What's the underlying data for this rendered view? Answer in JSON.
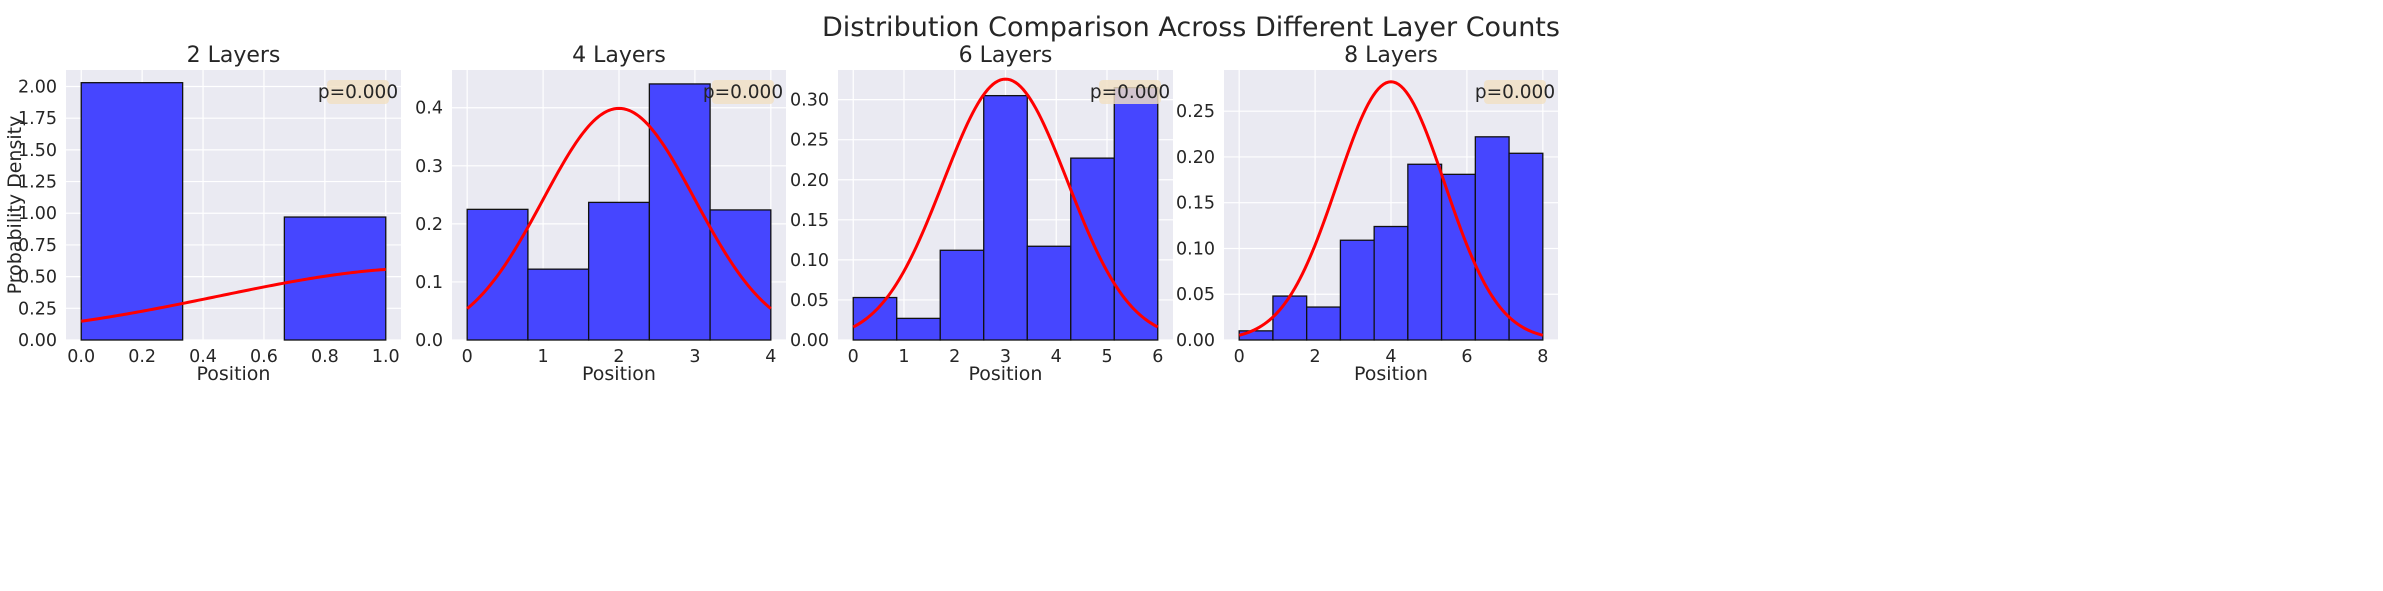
{
  "figure": {
    "suptitle": "Distribution Comparison Across Different Layer Counts",
    "colors": {
      "bars": "#4646ff",
      "bar_edge": "#111111",
      "curve": "#ff0000",
      "panel_bg": "#eaeaf2",
      "grid": "#ffffff",
      "badge_bg": "#f2e1c3"
    }
  },
  "chart_data": [
    {
      "type": "bar",
      "title": "2 Layers",
      "xlabel": "Position",
      "ylabel": "Probability Density",
      "annotation": "p=0.000",
      "xlim": [
        -0.05,
        1.05
      ],
      "ylim": [
        0,
        2.13
      ],
      "xticks": [
        0.0,
        0.2,
        0.4,
        0.6,
        0.8,
        1.0
      ],
      "xtick_labels": [
        "0.0",
        "0.2",
        "0.4",
        "0.6",
        "0.8",
        "1.0"
      ],
      "yticks": [
        0,
        0.25,
        0.5,
        0.75,
        1.0,
        1.25,
        1.5,
        1.75,
        2.0
      ],
      "ytick_labels": [
        "0.00",
        "0.25",
        "0.50",
        "0.75",
        "1.00",
        "1.25",
        "1.50",
        "1.75",
        "2.00"
      ],
      "bins": [
        [
          0.0,
          0.333
        ],
        [
          0.333,
          0.667
        ],
        [
          0.667,
          1.0
        ]
      ],
      "values": [
        2.03,
        0.0,
        0.97
      ],
      "curve": {
        "mean": 1.15,
        "std": 0.7,
        "x_range": [
          0.0,
          1.0
        ]
      }
    },
    {
      "type": "bar",
      "title": "4 Layers",
      "xlabel": "Position",
      "ylabel": "",
      "annotation": "p=0.000",
      "xlim": [
        -0.2,
        4.2
      ],
      "ylim": [
        0,
        0.465
      ],
      "xticks": [
        0,
        1,
        2,
        3,
        4
      ],
      "xtick_labels": [
        "0",
        "1",
        "2",
        "3",
        "4"
      ],
      "yticks": [
        0,
        0.1,
        0.2,
        0.3,
        0.4
      ],
      "ytick_labels": [
        "0.0",
        "0.1",
        "0.2",
        "0.3",
        "0.4"
      ],
      "bins": [
        [
          0,
          0.8
        ],
        [
          0.8,
          1.6
        ],
        [
          1.6,
          2.4
        ],
        [
          2.4,
          3.2
        ],
        [
          3.2,
          4.0
        ]
      ],
      "values": [
        0.225,
        0.122,
        0.237,
        0.441,
        0.224
      ],
      "curve": {
        "mean": 2.0,
        "std": 1.0,
        "x_range": [
          0,
          4
        ]
      }
    },
    {
      "type": "bar",
      "title": "6 Layers",
      "xlabel": "Position",
      "ylabel": "",
      "annotation": "p=0.000",
      "xlim": [
        -0.3,
        6.3
      ],
      "ylim": [
        0,
        0.337
      ],
      "xticks": [
        0,
        1,
        2,
        3,
        4,
        5,
        6
      ],
      "xtick_labels": [
        "0",
        "1",
        "2",
        "3",
        "4",
        "5",
        "6"
      ],
      "yticks": [
        0,
        0.05,
        0.1,
        0.15,
        0.2,
        0.25,
        0.3
      ],
      "ytick_labels": [
        "0.00",
        "0.05",
        "0.10",
        "0.15",
        "0.20",
        "0.25",
        "0.30"
      ],
      "bins": [
        [
          0,
          0.857
        ],
        [
          0.857,
          1.714
        ],
        [
          1.714,
          2.571
        ],
        [
          2.571,
          3.429
        ],
        [
          3.429,
          4.286
        ],
        [
          4.286,
          5.143
        ],
        [
          5.143,
          6.0
        ]
      ],
      "values": [
        0.053,
        0.027,
        0.112,
        0.305,
        0.117,
        0.227,
        0.315
      ],
      "curve": {
        "mean": 3.0,
        "std": 1.225,
        "x_range": [
          0,
          6
        ]
      }
    },
    {
      "type": "bar",
      "title": "8 Layers",
      "xlabel": "Position",
      "ylabel": "",
      "annotation": "p=0.000",
      "xlim": [
        -0.4,
        8.4
      ],
      "ylim": [
        0,
        0.295
      ],
      "xticks": [
        0,
        2,
        4,
        6,
        8
      ],
      "xtick_labels": [
        "0",
        "2",
        "4",
        "6",
        "8"
      ],
      "yticks": [
        0,
        0.05,
        0.1,
        0.15,
        0.2,
        0.25
      ],
      "ytick_labels": [
        "0.00",
        "0.05",
        "0.10",
        "0.15",
        "0.20",
        "0.25"
      ],
      "bins": [
        [
          0,
          0.889
        ],
        [
          0.889,
          1.778
        ],
        [
          1.778,
          2.667
        ],
        [
          2.667,
          3.556
        ],
        [
          3.556,
          4.444
        ],
        [
          4.444,
          5.333
        ],
        [
          5.333,
          6.222
        ],
        [
          6.222,
          7.111
        ],
        [
          7.111,
          8.0
        ]
      ],
      "values": [
        0.01,
        0.048,
        0.036,
        0.109,
        0.124,
        0.192,
        0.181,
        0.222,
        0.204
      ],
      "curve": {
        "mean": 4.0,
        "std": 1.414,
        "x_range": [
          0,
          8
        ]
      }
    }
  ]
}
